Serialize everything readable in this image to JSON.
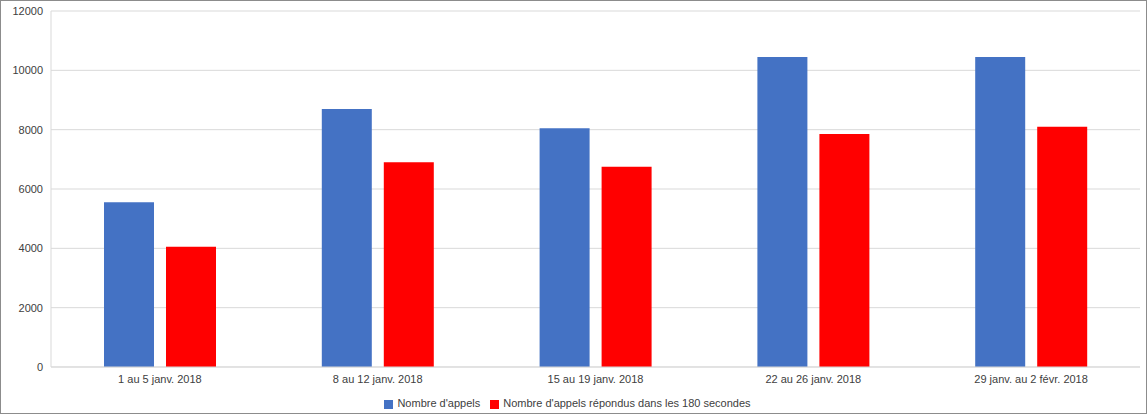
{
  "chart_data": {
    "type": "bar",
    "categories": [
      "1 au 5 janv. 2018",
      "8 au 12 janv. 2018",
      "15 au 19 janv. 2018",
      "22 au 26 janv. 2018",
      "29 janv. au 2 févr. 2018"
    ],
    "series": [
      {
        "name": "Nombre d'appels",
        "color": "#4472c4",
        "values": [
          5550,
          8700,
          8050,
          10450,
          10450
        ]
      },
      {
        "name": "Nombre d'appels répondus dans les 180 secondes",
        "color": "#ff0000",
        "values": [
          4050,
          6900,
          6750,
          7850,
          8100
        ]
      }
    ],
    "ylim": [
      0,
      12000
    ],
    "yticks": [
      0,
      2000,
      4000,
      6000,
      8000,
      10000,
      12000
    ],
    "grid": true,
    "legend": "bottom"
  }
}
